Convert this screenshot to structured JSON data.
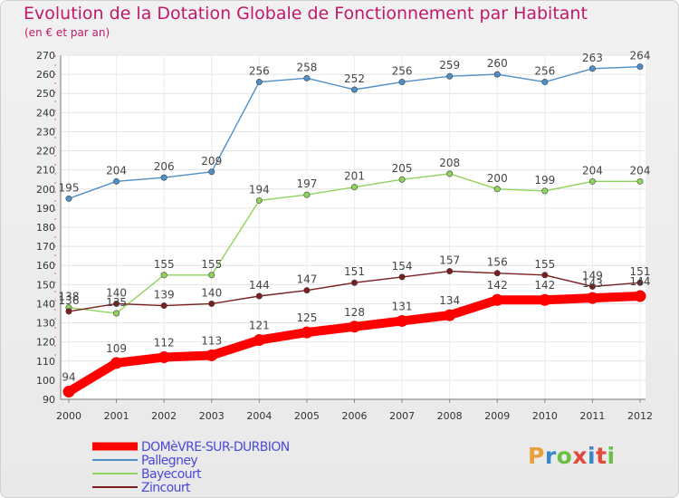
{
  "header": {
    "title": "Evolution de la Dotation Globale de Fonctionnement par Habitant",
    "subtitle": "(en € et par an)"
  },
  "brand": {
    "text": "Proxiti",
    "colors": [
      "#e8a03a",
      "#3a86c8",
      "#6bbf45",
      "#e24a3a",
      "#3a86c8",
      "#e24a3a",
      "#6bbf45"
    ]
  },
  "chart_data": {
    "type": "line",
    "title": "Evolution de la Dotation Globale de Fonctionnement par Habitant",
    "subtitle": "(en € et par an)",
    "x": [
      "2000",
      "2001",
      "2002",
      "2003",
      "2004",
      "2005",
      "2006",
      "2007",
      "2008",
      "2009",
      "2010",
      "2011",
      "2012"
    ],
    "ylim": [
      90,
      270
    ],
    "yticks": [
      90,
      100,
      110,
      120,
      130,
      140,
      150,
      160,
      170,
      180,
      190,
      200,
      210,
      220,
      230,
      240,
      250,
      260,
      270
    ],
    "grid": true,
    "legend_position": "bottom-left",
    "series": [
      {
        "name": "DOMèVRE-SUR-DURBION",
        "color": "#ff0000",
        "emphasis": true,
        "values": [
          94,
          109,
          112,
          113,
          121,
          125,
          128,
          131,
          134,
          142,
          142,
          143,
          144
        ],
        "labels": [
          "94",
          "109",
          "112",
          "113",
          "121",
          "125",
          "128",
          "131",
          "134",
          "142",
          "142",
          "143",
          "144"
        ]
      },
      {
        "name": "Pallegney",
        "color": "#4f8fc8",
        "values": [
          195,
          204,
          206,
          209,
          256,
          258,
          252,
          256,
          259,
          260,
          256,
          263,
          264
        ],
        "labels": [
          "195",
          "204",
          "206",
          "209",
          "256",
          "258",
          "252",
          "256",
          "259",
          "260",
          "256",
          "263",
          "264"
        ]
      },
      {
        "name": "Bayecourt",
        "color": "#8fd35a",
        "values": [
          138,
          135,
          155,
          155,
          194,
          197,
          201,
          205,
          208,
          200,
          199,
          204,
          204
        ],
        "labels": [
          "138",
          "135",
          "155",
          "155",
          "194",
          "197",
          "201",
          "205",
          "208",
          "200",
          "199",
          "204",
          "204"
        ]
      },
      {
        "name": "Zincourt",
        "color": "#7a1e1e",
        "values": [
          136,
          140,
          139,
          140,
          144,
          147,
          151,
          154,
          157,
          156,
          155,
          149,
          151
        ],
        "labels": [
          "136",
          "140",
          "139",
          "140",
          "144",
          "147",
          "151",
          "154",
          "157",
          "156",
          "155",
          "149",
          "151"
        ]
      }
    ]
  }
}
